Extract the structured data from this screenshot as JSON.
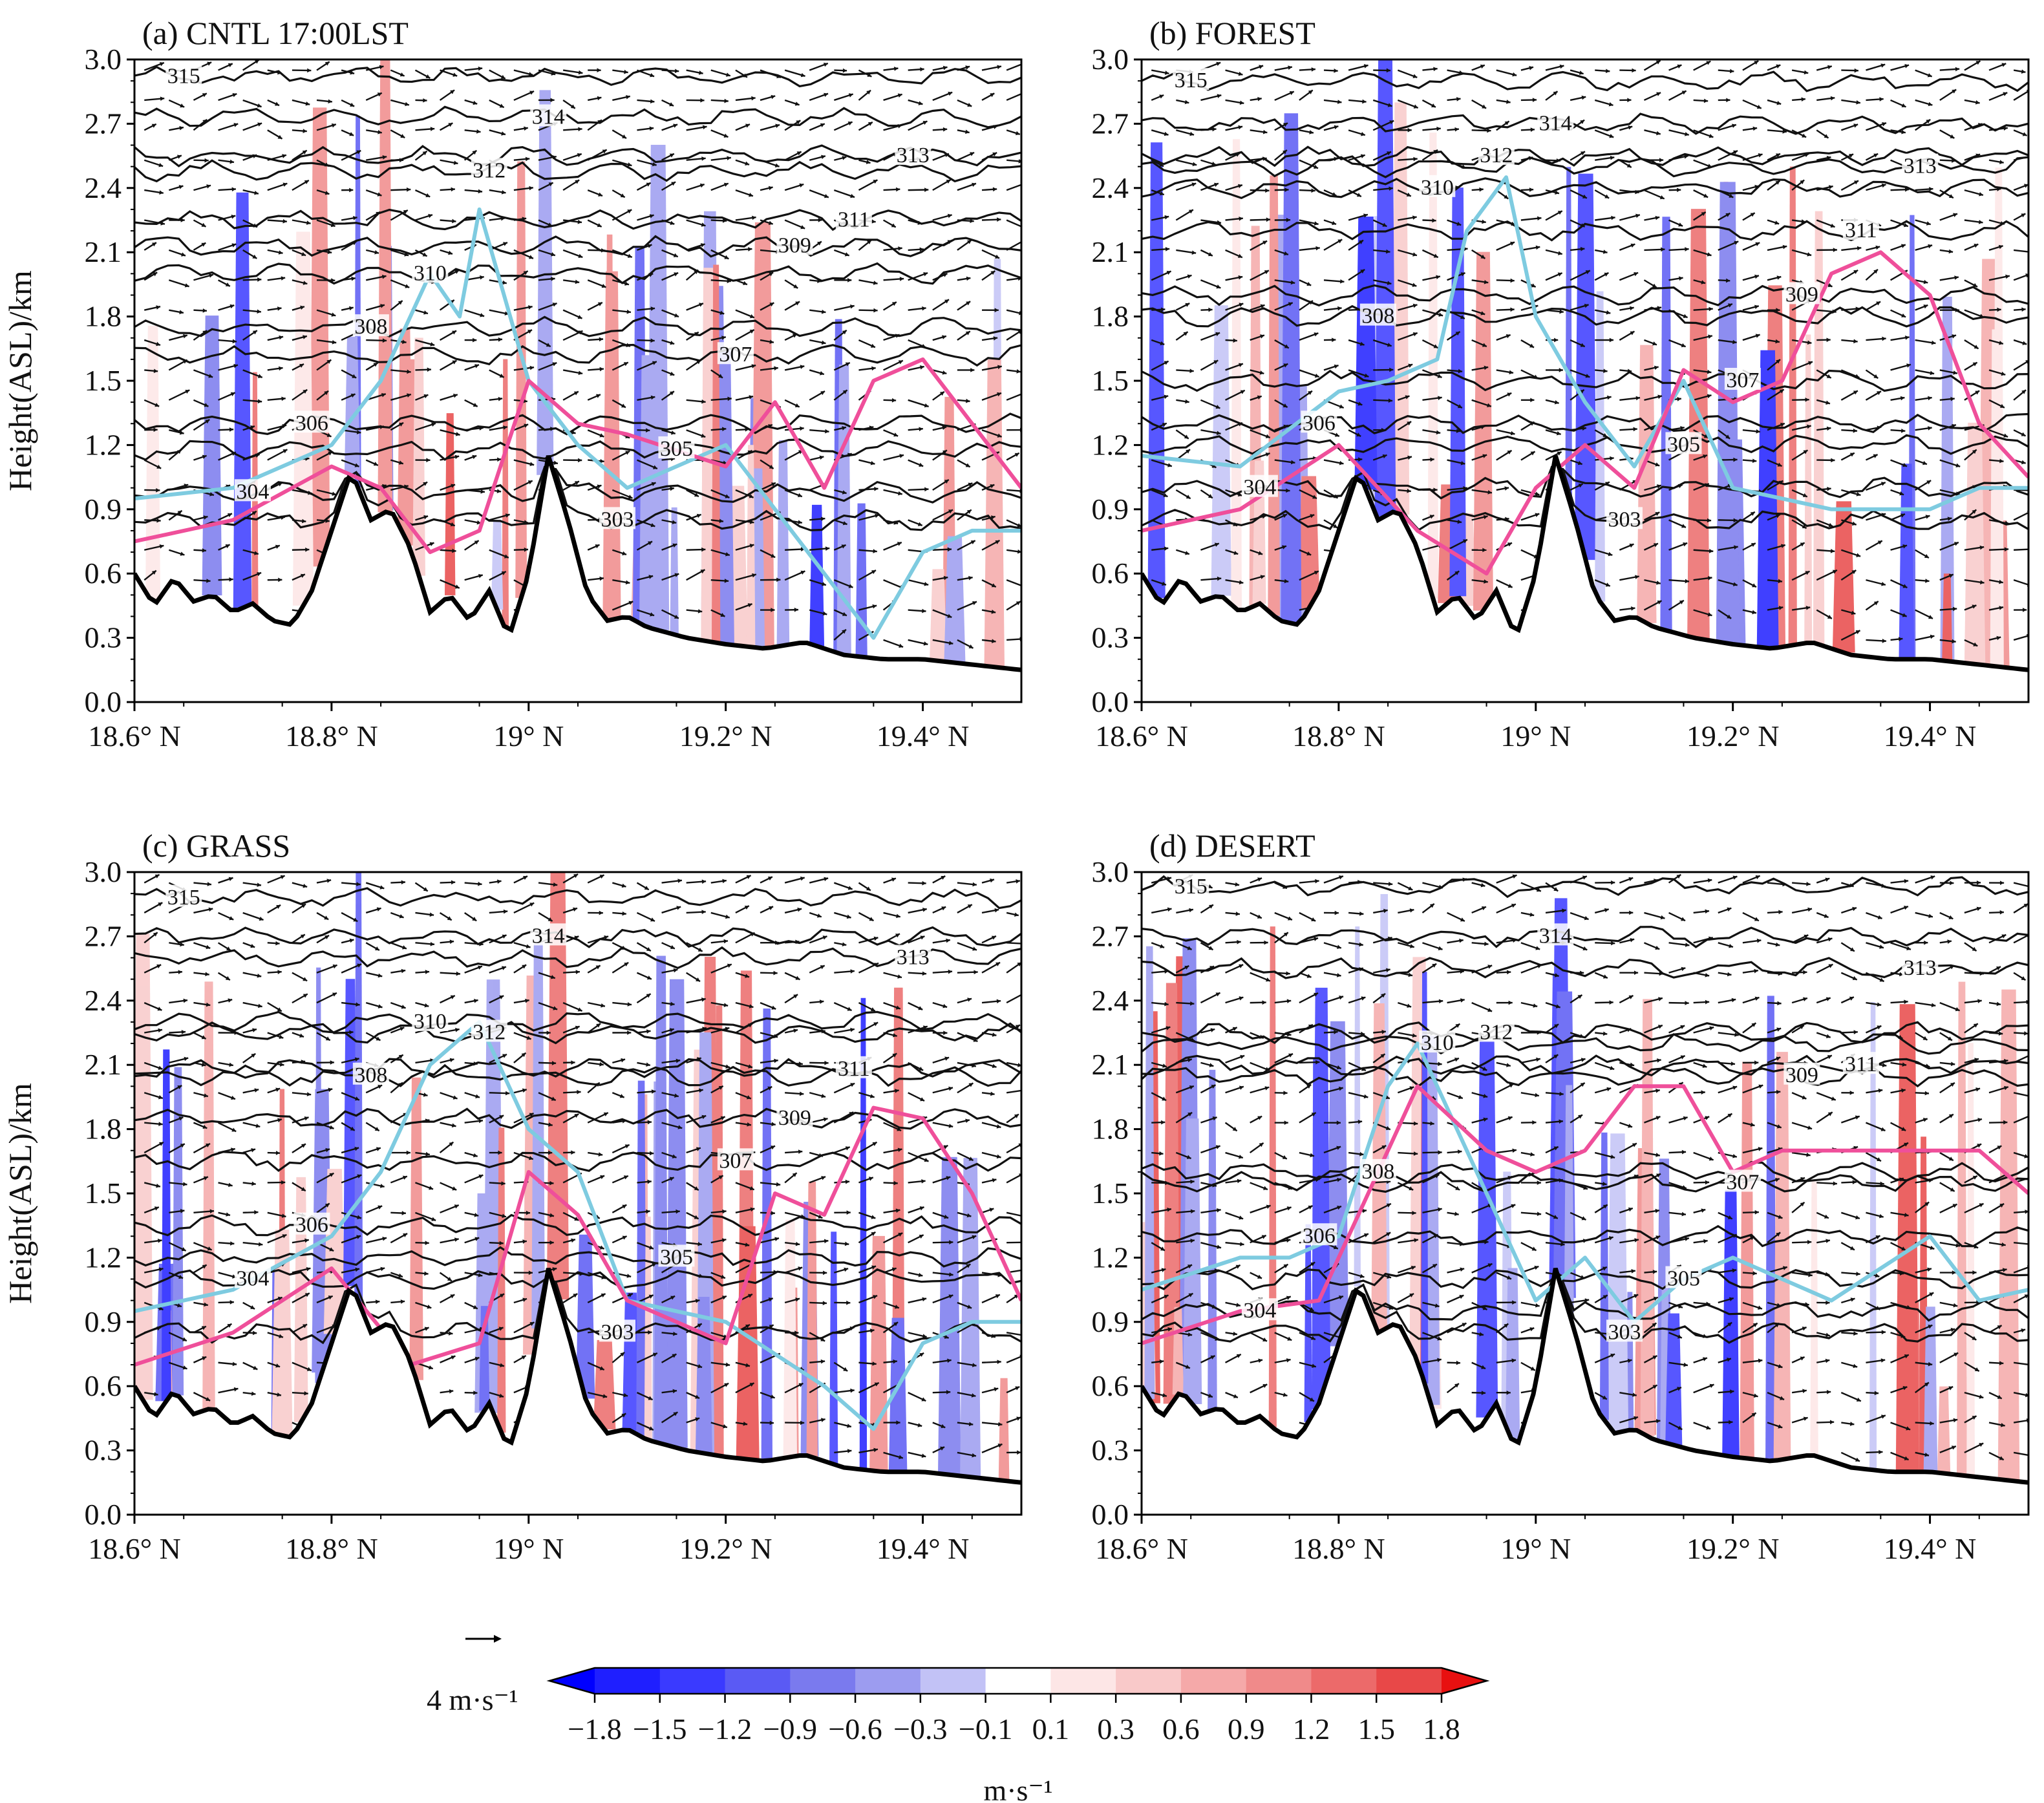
{
  "chart_data": {
    "type": "cross-section",
    "shading_units": "m·s⁻¹",
    "reference_vector": {
      "value": 4,
      "label": "4 m·s⁻¹"
    },
    "colorbar": {
      "levels": [
        -1.8,
        -1.5,
        -1.2,
        -0.9,
        -0.6,
        -0.3,
        -0.1,
        0.1,
        0.3,
        0.6,
        0.9,
        1.2,
        1.5,
        1.8
      ],
      "tick_labels": [
        "−1.8",
        "−1.5",
        "−1.2",
        "−0.9",
        "−0.6",
        "−0.3",
        "−0.1",
        "0.1",
        "0.3",
        "0.6",
        "0.9",
        "1.2",
        "1.5",
        "1.8"
      ],
      "colors": [
        "#1f1fff",
        "#3a3aff",
        "#5a5af4",
        "#7a7aee",
        "#9c9cf0",
        "#c2c2f6",
        "#ffffff",
        "#fde6e6",
        "#f9c9c9",
        "#f5a9a9",
        "#f08a8a",
        "#ec6a6a",
        "#e84848"
      ],
      "under_color": "#0000ff",
      "over_color": "#e81010",
      "units_label": "m·s⁻¹"
    },
    "y_axis": {
      "label": "Height(ASL)/km",
      "ylim": [
        0.0,
        3.0
      ],
      "ticks": [
        "0.0",
        "0.3",
        "0.6",
        "0.9",
        "1.2",
        "1.5",
        "1.8",
        "2.1",
        "2.4",
        "2.7",
        "3.0"
      ]
    },
    "x_axis": {
      "xlim": [
        18.6,
        19.5
      ],
      "ticks": [
        18.6,
        18.8,
        19.0,
        19.2,
        19.4
      ],
      "tick_labels": [
        "18.6° N",
        "18.8° N",
        "19° N",
        "19.2° N",
        "19.4° N"
      ]
    },
    "terrain": {
      "lat": [
        18.6,
        18.62,
        18.64,
        18.66,
        18.68,
        18.7,
        18.72,
        18.74,
        18.76,
        18.78,
        18.8,
        18.82,
        18.84,
        18.86,
        18.88,
        18.9,
        18.92,
        18.94,
        18.96,
        18.98,
        19.0,
        19.02,
        19.04,
        19.06,
        19.08,
        19.1,
        19.12,
        19.16,
        19.2,
        19.24,
        19.28,
        19.32,
        19.36,
        19.4,
        19.44,
        19.5
      ],
      "height": [
        0.6,
        0.45,
        0.58,
        0.47,
        0.5,
        0.42,
        0.46,
        0.38,
        0.36,
        0.52,
        0.8,
        1.08,
        0.85,
        0.9,
        0.72,
        0.42,
        0.5,
        0.38,
        0.52,
        0.3,
        0.6,
        1.15,
        0.85,
        0.5,
        0.38,
        0.4,
        0.35,
        0.3,
        0.27,
        0.25,
        0.28,
        0.22,
        0.2,
        0.2,
        0.18,
        0.15
      ]
    },
    "panels": [
      {
        "title": "(a) CNTL 17:00LST",
        "theta_contours": [
          {
            "label": "315",
            "h": 2.92
          },
          {
            "label": "314",
            "h": 2.73
          },
          {
            "label": "313",
            "h": 2.55
          },
          {
            "label": "312",
            "h": 2.48
          },
          {
            "label": "311",
            "h": 2.25
          },
          {
            "label": "310",
            "h": 2.0
          },
          {
            "label": "309",
            "h": 2.13
          },
          {
            "label": "308",
            "h": 1.75
          },
          {
            "label": "307",
            "h": 1.62
          },
          {
            "label": "306",
            "h": 1.3
          },
          {
            "label": "305",
            "h": 1.18
          },
          {
            "label": "304",
            "h": 0.98
          },
          {
            "label": "303",
            "h": 0.85
          }
        ],
        "cyan_line": [
          [
            18.6,
            0.95
          ],
          [
            18.7,
            1.0
          ],
          [
            18.8,
            1.2
          ],
          [
            18.85,
            1.5
          ],
          [
            18.9,
            2.0
          ],
          [
            18.93,
            1.8
          ],
          [
            18.95,
            2.3
          ],
          [
            19.0,
            1.5
          ],
          [
            19.05,
            1.2
          ],
          [
            19.1,
            1.0
          ],
          [
            19.2,
            1.2
          ],
          [
            19.3,
            0.6
          ],
          [
            19.35,
            0.3
          ],
          [
            19.4,
            0.7
          ],
          [
            19.45,
            0.8
          ],
          [
            19.5,
            0.8
          ]
        ],
        "pink_line": [
          [
            18.6,
            0.75
          ],
          [
            18.7,
            0.85
          ],
          [
            18.8,
            1.1
          ],
          [
            18.85,
            1.0
          ],
          [
            18.9,
            0.7
          ],
          [
            18.95,
            0.8
          ],
          [
            19.0,
            1.5
          ],
          [
            19.05,
            1.3
          ],
          [
            19.1,
            1.25
          ],
          [
            19.2,
            1.1
          ],
          [
            19.25,
            1.4
          ],
          [
            19.3,
            1.0
          ],
          [
            19.35,
            1.5
          ],
          [
            19.4,
            1.6
          ],
          [
            19.45,
            1.3
          ],
          [
            19.5,
            1.0
          ]
        ]
      },
      {
        "title": "(b) FOREST",
        "theta_contours": [
          {
            "label": "315",
            "h": 2.9
          },
          {
            "label": "314",
            "h": 2.7
          },
          {
            "label": "313",
            "h": 2.5
          },
          {
            "label": "312",
            "h": 2.55
          },
          {
            "label": "311",
            "h": 2.2
          },
          {
            "label": "310",
            "h": 2.4
          },
          {
            "label": "309",
            "h": 1.9
          },
          {
            "label": "308",
            "h": 1.8
          },
          {
            "label": "307",
            "h": 1.5
          },
          {
            "label": "306",
            "h": 1.3
          },
          {
            "label": "305",
            "h": 1.2
          },
          {
            "label": "304",
            "h": 1.0
          },
          {
            "label": "303",
            "h": 0.85
          }
        ],
        "cyan_line": [
          [
            18.6,
            1.15
          ],
          [
            18.7,
            1.1
          ],
          [
            18.8,
            1.45
          ],
          [
            18.85,
            1.5
          ],
          [
            18.9,
            1.6
          ],
          [
            18.93,
            2.2
          ],
          [
            18.97,
            2.45
          ],
          [
            19.0,
            1.8
          ],
          [
            19.05,
            1.4
          ],
          [
            19.1,
            1.1
          ],
          [
            19.15,
            1.5
          ],
          [
            19.2,
            1.0
          ],
          [
            19.3,
            0.9
          ],
          [
            19.4,
            0.9
          ],
          [
            19.45,
            1.0
          ],
          [
            19.5,
            1.0
          ]
        ],
        "pink_line": [
          [
            18.6,
            0.8
          ],
          [
            18.7,
            0.9
          ],
          [
            18.8,
            1.2
          ],
          [
            18.88,
            0.8
          ],
          [
            18.95,
            0.6
          ],
          [
            19.0,
            1.0
          ],
          [
            19.05,
            1.2
          ],
          [
            19.1,
            1.0
          ],
          [
            19.15,
            1.55
          ],
          [
            19.2,
            1.4
          ],
          [
            19.25,
            1.5
          ],
          [
            19.3,
            2.0
          ],
          [
            19.35,
            2.1
          ],
          [
            19.4,
            1.9
          ],
          [
            19.45,
            1.3
          ],
          [
            19.5,
            1.05
          ]
        ]
      },
      {
        "title": "(c) GRASS",
        "theta_contours": [
          {
            "label": "315",
            "h": 2.88
          },
          {
            "label": "314",
            "h": 2.7
          },
          {
            "label": "313",
            "h": 2.6
          },
          {
            "label": "312",
            "h": 2.25
          },
          {
            "label": "311",
            "h": 2.08
          },
          {
            "label": "310",
            "h": 2.3
          },
          {
            "label": "309",
            "h": 1.85
          },
          {
            "label": "308",
            "h": 2.05
          },
          {
            "label": "307",
            "h": 1.65
          },
          {
            "label": "306",
            "h": 1.35
          },
          {
            "label": "305",
            "h": 1.2
          },
          {
            "label": "304",
            "h": 1.1
          },
          {
            "label": "303",
            "h": 0.85
          }
        ],
        "cyan_line": [
          [
            18.6,
            0.95
          ],
          [
            18.7,
            1.05
          ],
          [
            18.8,
            1.3
          ],
          [
            18.85,
            1.6
          ],
          [
            18.9,
            2.1
          ],
          [
            18.95,
            2.3
          ],
          [
            19.0,
            1.8
          ],
          [
            19.05,
            1.6
          ],
          [
            19.1,
            1.0
          ],
          [
            19.2,
            0.9
          ],
          [
            19.3,
            0.6
          ],
          [
            19.35,
            0.4
          ],
          [
            19.4,
            0.8
          ],
          [
            19.45,
            0.9
          ],
          [
            19.5,
            0.9
          ]
        ],
        "pink_line": [
          [
            18.6,
            0.7
          ],
          [
            18.7,
            0.85
          ],
          [
            18.8,
            1.15
          ],
          [
            18.88,
            0.7
          ],
          [
            18.95,
            0.8
          ],
          [
            19.0,
            1.6
          ],
          [
            19.05,
            1.4
          ],
          [
            19.1,
            1.0
          ],
          [
            19.2,
            0.8
          ],
          [
            19.25,
            1.5
          ],
          [
            19.3,
            1.4
          ],
          [
            19.35,
            1.9
          ],
          [
            19.4,
            1.85
          ],
          [
            19.45,
            1.5
          ],
          [
            19.5,
            1.0
          ]
        ]
      },
      {
        "title": "(d) DESERT",
        "theta_contours": [
          {
            "label": "315",
            "h": 2.93
          },
          {
            "label": "314",
            "h": 2.7
          },
          {
            "label": "313",
            "h": 2.55
          },
          {
            "label": "312",
            "h": 2.25
          },
          {
            "label": "311",
            "h": 2.1
          },
          {
            "label": "310",
            "h": 2.2
          },
          {
            "label": "309",
            "h": 2.05
          },
          {
            "label": "308",
            "h": 1.6
          },
          {
            "label": "307",
            "h": 1.55
          },
          {
            "label": "306",
            "h": 1.3
          },
          {
            "label": "305",
            "h": 1.1
          },
          {
            "label": "304",
            "h": 0.95
          },
          {
            "label": "303",
            "h": 0.85
          }
        ],
        "cyan_line": [
          [
            18.6,
            1.05
          ],
          [
            18.7,
            1.2
          ],
          [
            18.75,
            1.2
          ],
          [
            18.8,
            1.3
          ],
          [
            18.85,
            2.0
          ],
          [
            18.88,
            2.2
          ],
          [
            18.95,
            1.5
          ],
          [
            19.0,
            1.0
          ],
          [
            19.05,
            1.2
          ],
          [
            19.1,
            0.9
          ],
          [
            19.15,
            1.1
          ],
          [
            19.2,
            1.2
          ],
          [
            19.3,
            1.0
          ],
          [
            19.4,
            1.3
          ],
          [
            19.45,
            1.0
          ],
          [
            19.5,
            1.05
          ]
        ],
        "pink_line": [
          [
            18.6,
            0.8
          ],
          [
            18.7,
            0.95
          ],
          [
            18.78,
            1.0
          ],
          [
            18.82,
            1.4
          ],
          [
            18.88,
            2.0
          ],
          [
            18.95,
            1.7
          ],
          [
            19.0,
            1.6
          ],
          [
            19.05,
            1.7
          ],
          [
            19.1,
            2.0
          ],
          [
            19.15,
            2.0
          ],
          [
            19.2,
            1.6
          ],
          [
            19.25,
            1.7
          ],
          [
            19.3,
            1.7
          ],
          [
            19.35,
            1.7
          ],
          [
            19.4,
            1.7
          ],
          [
            19.45,
            1.7
          ],
          [
            19.5,
            1.5
          ]
        ]
      }
    ]
  }
}
